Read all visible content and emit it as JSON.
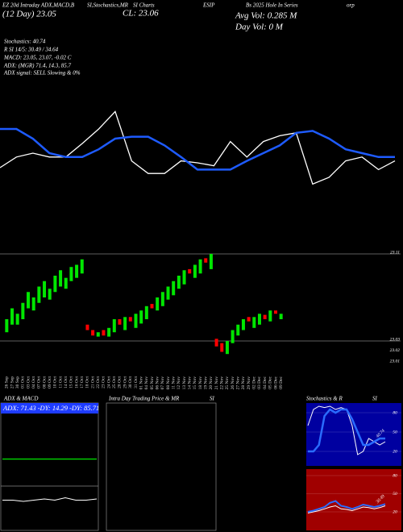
{
  "header": {
    "line1": [
      "EZ 20d Intraday ADX,MACD,B",
      "SI,Stochastics,MR",
      "SI Charts",
      "ESIP",
      "Bs 2025 Hole In Series",
      "orp"
    ],
    "day_close": "(12 Day) 23.05",
    "close": "CL: 23.06",
    "avg_vol": "Avg Vol: 0.285 M",
    "day_vol": "Day Vol: 0   M",
    "stats": [
      "Stochastics: 40.74",
      "R   SI 14/5: 30.49 / 34.64",
      "MACD: 23.05, 23.07, -0.02  C",
      "ADX:                    (MGR) 71.4, 14.3, 85.7",
      "ADX  signal: SELL  Slowing & 0%"
    ]
  },
  "panels": {
    "adx_title": "ADX  & MACD",
    "intraday_title": "Intra  Day Trading Price  & MR",
    "intraday_si": "SI",
    "stoch_title": "Stochastics & R",
    "stoch_si": "SI"
  },
  "chart_data": [
    {
      "type": "line",
      "x": [
        0,
        1,
        2,
        3,
        4,
        5,
        6,
        7,
        8,
        9,
        10,
        11,
        12,
        13,
        14,
        15,
        16,
        17,
        18,
        19,
        20,
        21,
        22,
        23,
        24
      ],
      "ylim": [
        0,
        100
      ],
      "series": [
        {
          "color": "#ffffff",
          "values": [
            35,
            46,
            50,
            46,
            46,
            60,
            75,
            93,
            42,
            29,
            29,
            42,
            40,
            37,
            62,
            46,
            62,
            68,
            71,
            18,
            25,
            42,
            46,
            33,
            42
          ]
        },
        {
          "color": "#1e5bff",
          "values": [
            75,
            75,
            65,
            50,
            46,
            46,
            54,
            65,
            67,
            67,
            58,
            46,
            33,
            33,
            33,
            42,
            50,
            58,
            71,
            73,
            65,
            54,
            50,
            46,
            46
          ]
        }
      ]
    },
    {
      "type": "candlestick",
      "categories": [
        "26 Sep",
        "27 Sep",
        "30 Sep",
        "01 Oct",
        "03 Oct",
        "04 Oct",
        "07 Oct",
        "08 Oct",
        "09 Oct",
        "10 Oct",
        "11 Oct",
        "14 Oct",
        "15 Oct",
        "16 Oct",
        "17 Oct",
        "18 Oct",
        "21 Oct",
        "22 Oct",
        "23 Oct",
        "24 Oct",
        "25 Oct",
        "28 Oct",
        "29 Oct",
        "30 Oct",
        "31 Oct",
        "01 Nov",
        "04 Nov",
        "05 Nov",
        "06 Nov",
        "07 Nov",
        "08 Nov",
        "11 Nov",
        "12 Nov",
        "13 Nov",
        "14 Nov",
        "15 Nov",
        "18 Nov",
        "19 Nov",
        "20 Nov",
        "21 Nov",
        "22 Nov",
        "25 Nov",
        "26 Nov",
        "27 Nov",
        "28 Nov",
        "29 Nov",
        "02 Dec",
        "03 Dec",
        "04 Dec",
        "05 Dec",
        "06 Dec",
        "09 Dec"
      ],
      "open": [
        23.038,
        23.045,
        23.045,
        23.05,
        23.06,
        23.058,
        23.065,
        23.07,
        23.068,
        23.075,
        23.08,
        23.078,
        23.085,
        23.088,
        23.092,
        23.045,
        23.04,
        23.034,
        23.04,
        23.034,
        23.038,
        23.05,
        23.04,
        23.052,
        23.042,
        23.046,
        23.05,
        23.064,
        23.058,
        23.062,
        23.068,
        23.072,
        23.078,
        23.082,
        23.096,
        23.088,
        23.092,
        23.106,
        23.096,
        23.032,
        23.028,
        23.018,
        23.028,
        23.035,
        23.04,
        23.052,
        23.042,
        23.045,
        23.054,
        23.048,
        23.058,
        23.05
      ],
      "close": [
        23.05,
        23.06,
        23.055,
        23.065,
        23.075,
        23.07,
        23.08,
        23.085,
        23.078,
        23.09,
        23.095,
        23.088,
        23.098,
        23.1,
        23.105,
        23.04,
        23.035,
        23.038,
        23.035,
        23.042,
        23.05,
        23.045,
        23.052,
        23.048,
        23.055,
        23.058,
        23.062,
        23.06,
        23.07,
        23.075,
        23.08,
        23.085,
        23.09,
        23.095,
        23.092,
        23.1,
        23.105,
        23.102,
        23.11,
        23.025,
        23.02,
        23.03,
        23.04,
        23.045,
        23.05,
        23.048,
        23.052,
        23.055,
        23.05,
        23.058,
        23.055,
        23.055
      ],
      "up_color": "#00e600",
      "down_color": "#ff0000",
      "ylim": [
        23.0,
        23.13
      ],
      "yticks": [
        23.11,
        23.03,
        23.02,
        23.01
      ]
    },
    {
      "type": "line",
      "label": "ADX: 71.43 -DY: 14.29 -DY: 85.71",
      "x": [
        0,
        1,
        2,
        3,
        4,
        5,
        6,
        7,
        8,
        9
      ],
      "ylim": [
        0,
        100
      ],
      "series": [
        {
          "color": "#00cc00",
          "values": [
            57,
            57,
            57,
            57,
            57,
            57,
            57,
            57,
            57,
            57
          ]
        },
        {
          "color": "#ffffff",
          "values": [
            23,
            23,
            22,
            23,
            24,
            23,
            25,
            23,
            23,
            24
          ]
        }
      ]
    },
    {
      "type": "line",
      "background": "#0000a0",
      "annotation": "40.74",
      "x": [
        0,
        1,
        2,
        3,
        4,
        5,
        6,
        7,
        8,
        9,
        10,
        11,
        12,
        13,
        14
      ],
      "ylim": [
        0,
        100
      ],
      "yticks": [
        80,
        50,
        20
      ],
      "series": [
        {
          "color": "#ffffff",
          "values": [
            60,
            85,
            90,
            88,
            90,
            85,
            88,
            85,
            60,
            15,
            20,
            40,
            35,
            30,
            35
          ]
        },
        {
          "color": "#2a6cff",
          "values": [
            20,
            20,
            30,
            75,
            85,
            80,
            85,
            85,
            70,
            50,
            30,
            30,
            35,
            40,
            40
          ]
        }
      ]
    },
    {
      "type": "line",
      "background": "#a00000",
      "annotation": "30.49",
      "x": [
        0,
        1,
        2,
        3,
        4,
        5,
        6,
        7,
        8,
        9,
        10,
        11,
        12,
        13,
        14
      ],
      "ylim": [
        0,
        100
      ],
      "yticks": [
        80,
        50,
        20
      ],
      "series": [
        {
          "color": "#ffffff",
          "values": [
            18,
            20,
            22,
            25,
            28,
            30,
            25,
            24,
            22,
            25,
            28,
            27,
            25,
            27,
            30
          ]
        },
        {
          "color": "#2a6cff",
          "values": [
            20,
            22,
            25,
            28,
            35,
            38,
            30,
            28,
            25,
            28,
            32,
            30,
            28,
            30,
            33
          ]
        }
      ]
    }
  ]
}
